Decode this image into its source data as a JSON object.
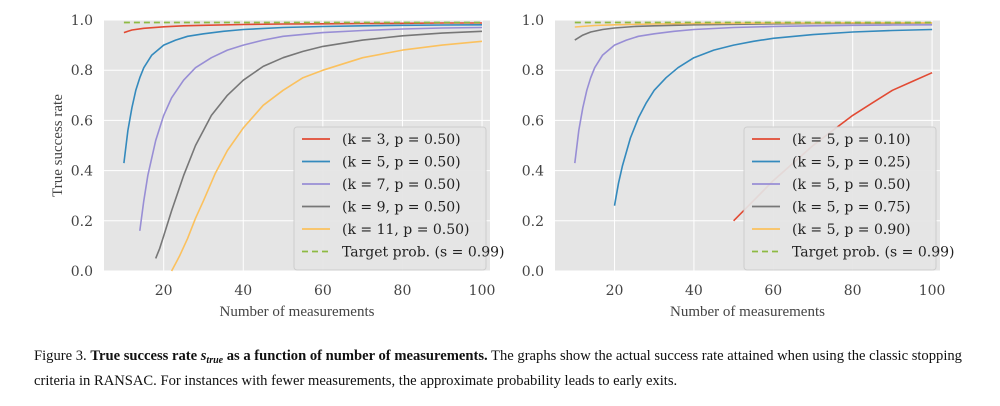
{
  "chart_data": [
    {
      "type": "line",
      "xlabel": "Number of measurements",
      "ylabel": "True success rate",
      "xlim": [
        5,
        102
      ],
      "ylim": [
        0,
        1.0
      ],
      "xticks": [
        "20",
        "40",
        "60",
        "80",
        "100"
      ],
      "yticks": [
        "0.0",
        "0.2",
        "0.4",
        "0.6",
        "0.8",
        "1.0"
      ],
      "grid": true,
      "legend_position": "lower-right",
      "series": [
        {
          "name": "(k = 3, p = 0.50)",
          "color": "#e24a33",
          "x": [
            10,
            12,
            15,
            20,
            25,
            30,
            40,
            50,
            60,
            70,
            80,
            90,
            100
          ],
          "y": [
            0.95,
            0.96,
            0.967,
            0.973,
            0.977,
            0.979,
            0.982,
            0.984,
            0.985,
            0.986,
            0.987,
            0.988,
            0.988
          ]
        },
        {
          "name": "(k = 5, p = 0.50)",
          "color": "#348abd",
          "x": [
            10,
            11,
            12,
            13,
            14,
            15,
            17,
            20,
            23,
            26,
            30,
            35,
            40,
            50,
            60,
            70,
            80,
            90,
            100
          ],
          "y": [
            0.43,
            0.56,
            0.65,
            0.72,
            0.77,
            0.81,
            0.86,
            0.9,
            0.92,
            0.935,
            0.945,
            0.955,
            0.962,
            0.97,
            0.974,
            0.977,
            0.979,
            0.98,
            0.981
          ]
        },
        {
          "name": "(k = 7, p = 0.50)",
          "color": "#988ed5",
          "x": [
            14,
            15,
            16,
            18,
            20,
            22,
            25,
            28,
            32,
            36,
            40,
            45,
            50,
            60,
            70,
            80,
            90,
            100
          ],
          "y": [
            0.16,
            0.28,
            0.38,
            0.52,
            0.62,
            0.69,
            0.76,
            0.81,
            0.85,
            0.88,
            0.9,
            0.92,
            0.935,
            0.95,
            0.958,
            0.964,
            0.968,
            0.97
          ]
        },
        {
          "name": "(k = 9, p = 0.50)",
          "color": "#777777",
          "x": [
            18,
            19,
            20,
            22,
            25,
            28,
            32,
            36,
            40,
            45,
            50,
            55,
            60,
            70,
            80,
            90,
            100
          ],
          "y": [
            0.05,
            0.09,
            0.14,
            0.24,
            0.38,
            0.5,
            0.62,
            0.7,
            0.76,
            0.815,
            0.85,
            0.875,
            0.895,
            0.92,
            0.937,
            0.948,
            0.955
          ]
        },
        {
          "name": "(k = 11, p = 0.50)",
          "color": "#fbc15e",
          "x": [
            22,
            23,
            24,
            26,
            28,
            30,
            33,
            36,
            40,
            45,
            50,
            55,
            60,
            70,
            80,
            90,
            100
          ],
          "y": [
            0.0,
            0.03,
            0.06,
            0.13,
            0.21,
            0.28,
            0.39,
            0.48,
            0.57,
            0.66,
            0.72,
            0.77,
            0.8,
            0.85,
            0.88,
            0.9,
            0.915
          ]
        },
        {
          "name": "Target prob. (s = 0.99)",
          "color": "#8eba42",
          "dashed": true,
          "x": [
            10,
            100
          ],
          "y": [
            0.99,
            0.99
          ]
        }
      ]
    },
    {
      "type": "line",
      "xlabel": "Number of measurements",
      "ylabel": "",
      "xlim": [
        5,
        102
      ],
      "ylim": [
        0,
        1.0
      ],
      "xticks": [
        "20",
        "40",
        "60",
        "80",
        "100"
      ],
      "yticks": [
        "0.0",
        "0.2",
        "0.4",
        "0.6",
        "0.8",
        "1.0"
      ],
      "grid": true,
      "legend_position": "lower-right",
      "series": [
        {
          "name": "(k = 5, p = 0.10)",
          "color": "#e24a33",
          "x": [
            50,
            55,
            60,
            65,
            70,
            75,
            80,
            85,
            90,
            95,
            100
          ],
          "y": [
            0.2,
            0.28,
            0.36,
            0.43,
            0.5,
            0.56,
            0.62,
            0.67,
            0.72,
            0.755,
            0.79
          ]
        },
        {
          "name": "(k = 5, p = 0.25)",
          "color": "#348abd",
          "x": [
            20,
            21,
            22,
            24,
            26,
            28,
            30,
            33,
            36,
            40,
            45,
            50,
            55,
            60,
            70,
            80,
            90,
            100
          ],
          "y": [
            0.26,
            0.35,
            0.42,
            0.53,
            0.61,
            0.67,
            0.72,
            0.77,
            0.81,
            0.85,
            0.88,
            0.9,
            0.915,
            0.927,
            0.942,
            0.952,
            0.958,
            0.962
          ]
        },
        {
          "name": "(k = 5, p = 0.50)",
          "color": "#988ed5",
          "x": [
            10,
            11,
            12,
            13,
            14,
            15,
            17,
            20,
            23,
            26,
            30,
            35,
            40,
            50,
            60,
            70,
            80,
            90,
            100
          ],
          "y": [
            0.43,
            0.56,
            0.65,
            0.72,
            0.77,
            0.81,
            0.86,
            0.9,
            0.92,
            0.935,
            0.945,
            0.955,
            0.962,
            0.97,
            0.974,
            0.977,
            0.979,
            0.98,
            0.981
          ]
        },
        {
          "name": "(k = 5, p = 0.75)",
          "color": "#777777",
          "x": [
            10,
            12,
            14,
            17,
            20,
            25,
            30,
            40,
            50,
            60,
            70,
            80,
            90,
            100
          ],
          "y": [
            0.92,
            0.94,
            0.952,
            0.962,
            0.968,
            0.974,
            0.977,
            0.981,
            0.983,
            0.985,
            0.986,
            0.987,
            0.987,
            0.988
          ]
        },
        {
          "name": "(k = 5, p = 0.90)",
          "color": "#fbc15e",
          "x": [
            10,
            15,
            20,
            30,
            40,
            50,
            60,
            70,
            80,
            90,
            100
          ],
          "y": [
            0.972,
            0.978,
            0.981,
            0.984,
            0.986,
            0.987,
            0.988,
            0.988,
            0.989,
            0.989,
            0.989
          ]
        },
        {
          "name": "Target prob. (s = 0.99)",
          "color": "#8eba42",
          "dashed": true,
          "x": [
            10,
            100
          ],
          "y": [
            0.99,
            0.99
          ]
        }
      ]
    }
  ],
  "caption": {
    "label": "Figure 3.",
    "title_before": "True success rate ",
    "symbol": "s",
    "symbol_sub": "true",
    "title_after": " as a function of number of measurements.",
    "text": " The graphs show the actual success rate attained when using the classic stopping criteria in RANSAC. For instances with fewer measurements, the approximate probability leads to early exits."
  }
}
